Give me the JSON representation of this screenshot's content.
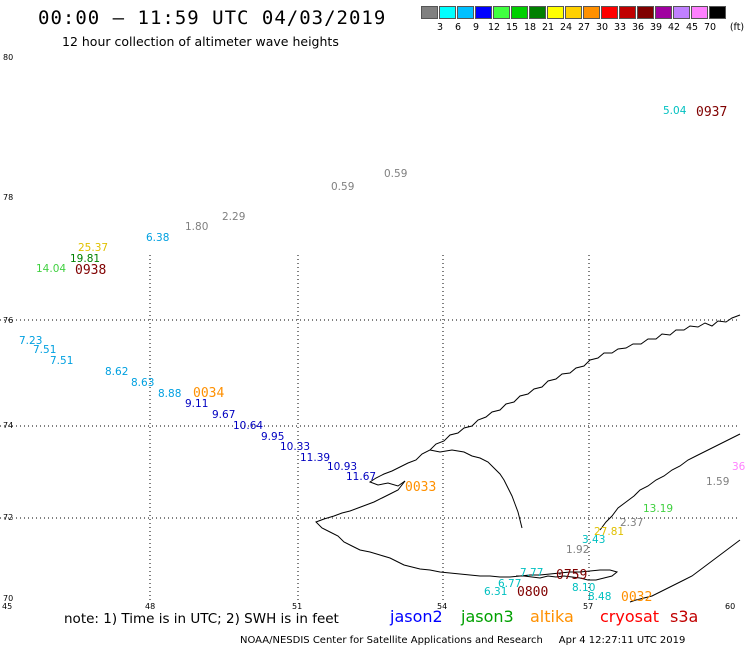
{
  "header": {
    "title": "00:00 – 11:59 UTC 04/03/2019",
    "subtitle": "12 hour collection of altimeter wave heights"
  },
  "legend": {
    "unit": "(ft)",
    "items": [
      {
        "label": "3",
        "color": "#808080"
      },
      {
        "label": "6",
        "color": "#00ffff"
      },
      {
        "label": "9",
        "color": "#00c0ff"
      },
      {
        "label": "12",
        "color": "#0000ff"
      },
      {
        "label": "15",
        "color": "#40ff40"
      },
      {
        "label": "18",
        "color": "#00d000"
      },
      {
        "label": "21",
        "color": "#008000"
      },
      {
        "label": "24",
        "color": "#ffff00"
      },
      {
        "label": "27",
        "color": "#ffd000"
      },
      {
        "label": "30",
        "color": "#ff9000"
      },
      {
        "label": "33",
        "color": "#ff0000"
      },
      {
        "label": "36",
        "color": "#c00000"
      },
      {
        "label": "39",
        "color": "#800000"
      },
      {
        "label": "42",
        "color": "#a000a0"
      },
      {
        "label": "45",
        "color": "#c080ff"
      },
      {
        "label": "70",
        "color": "#ff80ff"
      },
      {
        "label": "",
        "color": "#000000"
      }
    ]
  },
  "axes": {
    "lon_labels": [
      "45",
      "48",
      "51",
      "54",
      "57",
      "60"
    ],
    "lat_labels": [
      "80",
      "78",
      "76",
      "74",
      "72",
      "70"
    ]
  },
  "readings": [
    {
      "text": "5.04",
      "color": "#00c0c0"
    },
    {
      "text": "0.59",
      "color": "#808080"
    },
    {
      "text": "0.59",
      "color": "#808080"
    },
    {
      "text": "2.29",
      "color": "#808080"
    },
    {
      "text": "1.80",
      "color": "#808080"
    },
    {
      "text": "6.38",
      "color": "#00a0e0"
    },
    {
      "text": "25.37",
      "color": "#e0c000"
    },
    {
      "text": "19.81",
      "color": "#008000"
    },
    {
      "text": "14.04",
      "color": "#40d040"
    },
    {
      "text": "7.23",
      "color": "#00a0e0"
    },
    {
      "text": "7.51",
      "color": "#00a0e0"
    },
    {
      "text": "7.51",
      "color": "#00a0e0"
    },
    {
      "text": "8.62",
      "color": "#00a0e0"
    },
    {
      "text": "8.63",
      "color": "#00a0e0"
    },
    {
      "text": "8.88",
      "color": "#00a0e0"
    },
    {
      "text": "9.11",
      "color": "#0000c0"
    },
    {
      "text": "9.67",
      "color": "#0000c0"
    },
    {
      "text": "10.64",
      "color": "#0000c0"
    },
    {
      "text": "9.95",
      "color": "#0000c0"
    },
    {
      "text": "10.33",
      "color": "#0000c0"
    },
    {
      "text": "11.39",
      "color": "#0000c0"
    },
    {
      "text": "10.93",
      "color": "#0000c0"
    },
    {
      "text": "11.67",
      "color": "#0000c0"
    },
    {
      "text": "1.59",
      "color": "#808080"
    },
    {
      "text": "13.19",
      "color": "#40d040"
    },
    {
      "text": "2.37",
      "color": "#808080"
    },
    {
      "text": "27.81",
      "color": "#e0c000"
    },
    {
      "text": "3.43",
      "color": "#00c0c0"
    },
    {
      "text": "1.92",
      "color": "#808080"
    },
    {
      "text": "7.77",
      "color": "#00c0c0"
    },
    {
      "text": "6.77",
      "color": "#00c0c0"
    },
    {
      "text": "6.31",
      "color": "#00c0c0"
    },
    {
      "text": "8.10",
      "color": "#00c0c0"
    },
    {
      "text": "8.48",
      "color": "#00c0c0"
    },
    {
      "text": "36",
      "color": "#ff80ff"
    }
  ],
  "pass_times": [
    {
      "text": "0937",
      "color": "#800000"
    },
    {
      "text": "0938",
      "color": "#800000"
    },
    {
      "text": "0034",
      "color": "#ff9000"
    },
    {
      "text": "0033",
      "color": "#ff9000"
    },
    {
      "text": "0759",
      "color": "#800000"
    },
    {
      "text": "0800",
      "color": "#800000"
    },
    {
      "text": "0032",
      "color": "#ff9000"
    }
  ],
  "footer": {
    "note": "note: 1) Time is in UTC; 2) SWH is in feet",
    "satellites": [
      {
        "name": "jason2",
        "color": "#0000ff"
      },
      {
        "name": "jason3",
        "color": "#00a000"
      },
      {
        "name": "altika",
        "color": "#ff9000"
      },
      {
        "name": "cryosat",
        "color": "#ff0000"
      },
      {
        "name": "s3a",
        "color": "#c00000"
      }
    ],
    "credit": "NOAA/NESDIS Center for Satellite Applications and Research",
    "timestamp": "Apr  4 12:27:11 UTC 2019"
  }
}
